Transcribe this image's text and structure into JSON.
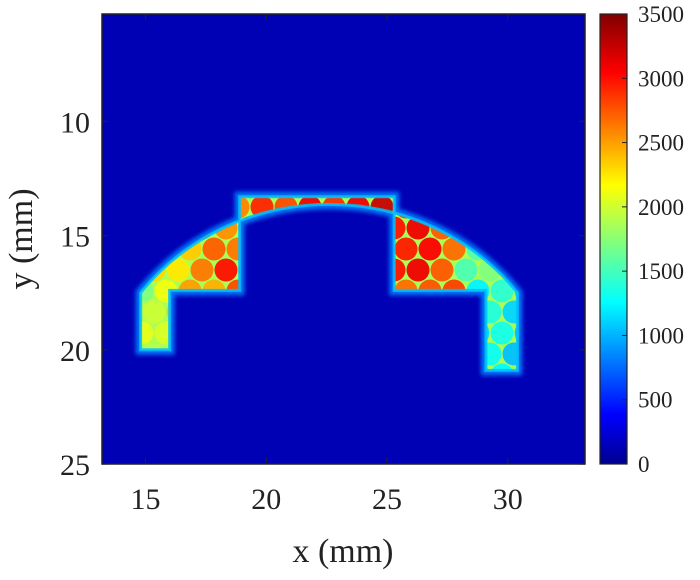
{
  "chart_data": {
    "type": "heatmap",
    "title": "",
    "xlabel": "x (mm)",
    "ylabel": "y (mm)",
    "xlim": [
      13.2,
      33.2
    ],
    "ylim": [
      25,
      5.3
    ],
    "y_reversed": true,
    "x_ticks": [
      15,
      20,
      25,
      30
    ],
    "x_tick_labels": [
      "15",
      "20",
      "25",
      "30"
    ],
    "y_ticks": [
      10,
      15,
      20,
      25
    ],
    "y_tick_labels": [
      "10",
      "15",
      "20",
      "25"
    ],
    "colorbar": {
      "min": 0,
      "max": 3500,
      "ticks": [
        0,
        500,
        1000,
        1500,
        2000,
        2500,
        3000,
        3500
      ],
      "tick_labels": [
        "0",
        "500",
        "1000",
        "1500",
        "2000",
        "2500",
        "3000",
        "3500"
      ],
      "colormap": "jet"
    },
    "background_value": 180,
    "illuminated_region": {
      "arc_center": [
        23.3,
        17.5
      ],
      "arc_radius": 9.8,
      "cutout": {
        "x": [
          18.9,
          25.3
        ],
        "y": [
          13.3,
          17.4
        ]
      },
      "legs": [
        {
          "x": [
            14.8,
            16.0
          ],
          "y": [
            17.4,
            20.0
          ]
        },
        {
          "x": [
            29.1,
            30.4
          ],
          "y": [
            17.4,
            20.9
          ]
        }
      ],
      "peak_value": 3300,
      "center_value": 3050,
      "edge_value": 1900,
      "right_wing_value": 1500,
      "outline_value": 1100
    },
    "grid": false,
    "legend": "none"
  }
}
